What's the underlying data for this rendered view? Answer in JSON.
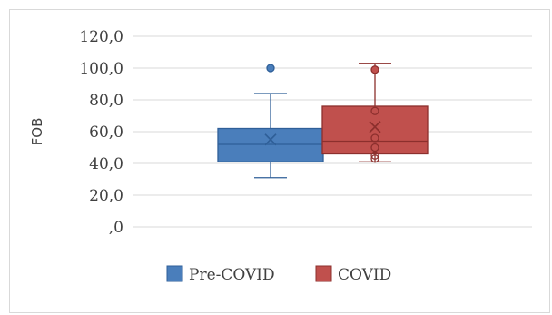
{
  "chart_data": {
    "type": "boxplot",
    "ylabel": "FOB",
    "ylim": [
      0,
      120
    ],
    "yticks": [
      0,
      20,
      40,
      60,
      80,
      100,
      120
    ],
    "ytick_labels": [
      ",0",
      "20,0",
      "40,0",
      "60,0",
      "80,0",
      "100,0",
      "120,0"
    ],
    "grid": true,
    "legend_position": "bottom",
    "series": [
      {
        "name": "Pre-COVID",
        "color": "#4a7ebb",
        "edge": "#2f5f98",
        "min": 31,
        "q1": 41,
        "median": 52,
        "q3": 62,
        "max": 84,
        "mean": 55,
        "outliers": [
          100
        ]
      },
      {
        "name": "COVID",
        "color": "#c0504d",
        "edge": "#8c2f2d",
        "min": 41,
        "q1": 46,
        "median": 54,
        "q3": 76,
        "max": 103,
        "mean": 63,
        "outliers": [
          99,
          73,
          56,
          50,
          45,
          43
        ]
      }
    ]
  }
}
